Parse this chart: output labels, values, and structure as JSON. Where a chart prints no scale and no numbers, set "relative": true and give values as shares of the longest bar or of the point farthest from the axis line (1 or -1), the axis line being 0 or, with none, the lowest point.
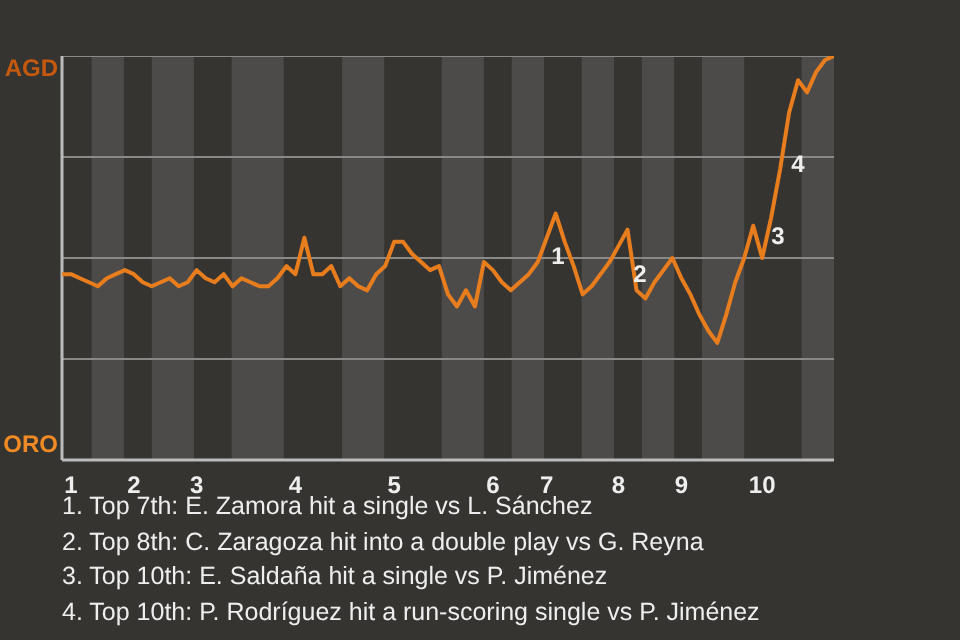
{
  "chart_data": {
    "type": "line",
    "relative": true,
    "categories": [
      null,
      "1",
      null,
      null,
      null,
      null,
      null,
      null,
      "2",
      null,
      null,
      null,
      null,
      null,
      null,
      "3",
      null,
      null,
      null,
      null,
      null,
      null,
      null,
      null,
      null,
      null,
      "4",
      null,
      null,
      null,
      null,
      null,
      null,
      null,
      null,
      null,
      null,
      "5",
      null,
      null,
      null,
      null,
      null,
      null,
      null,
      null,
      null,
      null,
      "6",
      null,
      null,
      null,
      null,
      null,
      "7",
      null,
      null,
      null,
      null,
      null,
      null,
      null,
      "8",
      null,
      null,
      null,
      null,
      null,
      null,
      "9",
      null,
      null,
      null,
      null,
      null,
      null,
      null,
      null,
      "10",
      null,
      null,
      null,
      null,
      null,
      null,
      null,
      null
    ],
    "legend": false,
    "marker": "none",
    "line_style": "solid",
    "ref_lines": [
      {
        "axis": "y",
        "value": 0.25,
        "color": "#8a8988"
      },
      {
        "axis": "y",
        "value": 0.5,
        "color": "#8a8988"
      },
      {
        "axis": "y",
        "value": 0.75,
        "color": "#8a8988"
      },
      {
        "axis": "y",
        "value": 1,
        "color": "#8a8988"
      }
    ],
    "series": [
      {
        "color": "#e87d1e",
        "values": [
          0.46,
          0.46,
          0.45,
          0.44,
          0.43,
          0.45,
          0.46,
          0.47,
          0.46,
          0.44,
          0.43,
          0.44,
          0.45,
          0.43,
          0.44,
          0.47,
          0.45,
          0.44,
          0.46,
          0.43,
          0.45,
          0.44,
          0.43,
          0.43,
          0.45,
          0.48,
          0.46,
          0.55,
          0.46,
          0.46,
          0.48,
          0.43,
          0.45,
          0.43,
          0.42,
          0.46,
          0.48,
          0.54,
          0.54,
          0.51,
          0.49,
          0.47,
          0.48,
          0.41,
          0.38,
          0.42,
          0.38,
          0.49,
          0.47,
          0.44,
          0.42,
          0.44,
          0.46,
          0.49,
          0.55,
          0.61,
          0.54,
          0.48,
          0.41,
          0.43,
          0.46,
          0.49,
          0.53,
          0.57,
          0.42,
          0.4,
          0.44,
          0.47,
          0.5,
          0.45,
          0.41,
          0.36,
          0.32,
          0.29,
          0.36,
          0.44,
          0.5,
          0.58,
          0.5,
          0.6,
          0.72,
          0.86,
          0.94,
          0.91,
          0.96,
          0.99,
          1
        ]
      }
    ],
    "annotations": [
      "AGD",
      "ORO",
      "1",
      "2",
      "3",
      "4",
      "1. Top 7th: E. Zamora hit a single vs L. Sánchez",
      "2. Top 8th: C. Zaragoza hit into a double play vs G. Reyna",
      "3. Top 10th: E. Saldaña hit a single vs P. Jiménez",
      "4. Top 10th: P. Rodríguez hit a run-scoring single vs P. Jiménez"
    ]
  }
}
